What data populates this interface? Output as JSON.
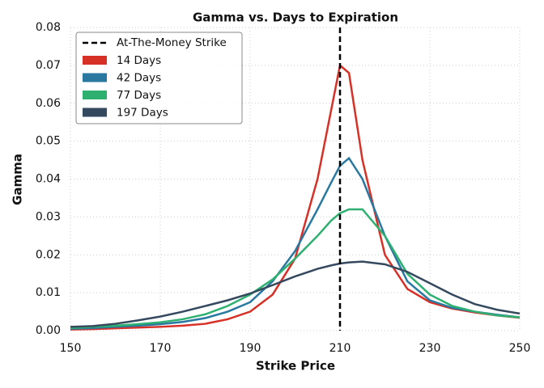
{
  "chart_data": {
    "type": "line",
    "title": "Gamma vs. Days to Expiration",
    "x_label": "Strike Price",
    "y_label": "Gamma",
    "x": [
      150,
      155,
      160,
      165,
      170,
      175,
      180,
      185,
      190,
      195,
      200,
      205,
      208,
      210,
      212,
      215,
      220,
      225,
      230,
      235,
      240,
      245,
      250
    ],
    "series": [
      {
        "name": "14 Days",
        "color": "#d73027",
        "values": [
          0.0003,
          0.0004,
          0.0006,
          0.0008,
          0.001,
          0.0013,
          0.0018,
          0.003,
          0.005,
          0.0095,
          0.019,
          0.04,
          0.058,
          0.07,
          0.068,
          0.045,
          0.02,
          0.011,
          0.0075,
          0.0058,
          0.0048,
          0.004,
          0.0034
        ]
      },
      {
        "name": "42 Days",
        "color": "#2878a0",
        "values": [
          0.0005,
          0.0007,
          0.001,
          0.0013,
          0.0017,
          0.0023,
          0.0033,
          0.005,
          0.0075,
          0.013,
          0.021,
          0.032,
          0.039,
          0.0435,
          0.0455,
          0.04,
          0.025,
          0.013,
          0.008,
          0.006,
          0.005,
          0.0042,
          0.0035
        ]
      },
      {
        "name": "77 Days",
        "color": "#2eb070",
        "values": [
          0.0007,
          0.001,
          0.0013,
          0.0017,
          0.0022,
          0.003,
          0.0043,
          0.0065,
          0.0095,
          0.0135,
          0.019,
          0.025,
          0.029,
          0.031,
          0.032,
          0.032,
          0.025,
          0.015,
          0.0095,
          0.0065,
          0.005,
          0.004,
          0.0035
        ]
      },
      {
        "name": "197 Days",
        "color": "#34495e",
        "values": [
          0.001,
          0.0012,
          0.0018,
          0.0027,
          0.0037,
          0.005,
          0.0065,
          0.008,
          0.0098,
          0.012,
          0.0143,
          0.0163,
          0.0172,
          0.0177,
          0.018,
          0.0182,
          0.0175,
          0.0155,
          0.0125,
          0.0095,
          0.007,
          0.0055,
          0.0045
        ]
      }
    ],
    "vline": {
      "label": "At-The-Money Strike",
      "x": 210,
      "color": "#000000"
    },
    "xlim": [
      150,
      250
    ],
    "xticks": [
      150,
      170,
      190,
      210,
      230,
      250
    ],
    "ylim": [
      0,
      0.08
    ],
    "yticks": [
      {
        "value": 0,
        "label": "0.00"
      },
      {
        "value": 0.01,
        "label": "0.01"
      },
      {
        "value": 0.02,
        "label": "0.02"
      },
      {
        "value": 0.03,
        "label": "0.03"
      },
      {
        "value": 0.04,
        "label": "0.04"
      },
      {
        "value": 0.05,
        "label": "0.05"
      },
      {
        "value": 0.06,
        "label": "0.06"
      },
      {
        "value": 0.07,
        "label": "0.07"
      },
      {
        "value": 0.08,
        "label": "0.08"
      }
    ],
    "grid": true,
    "legend": "upper left"
  }
}
